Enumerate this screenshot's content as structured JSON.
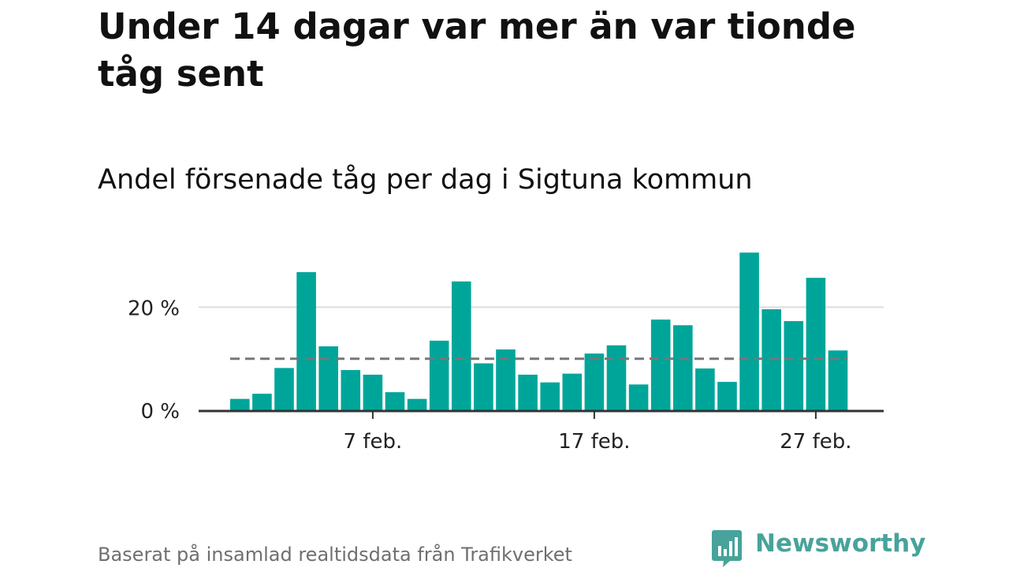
{
  "title": "Under 14 dagar var mer än var tionde tåg sent",
  "subtitle": "Andel försenade tåg per dag i Sigtuna kommun",
  "source": "Baserat på insamlad realtidsdata från Trafikverket",
  "logo": {
    "text": "Newsworthy",
    "icon": "newsworthy-bar-chart-icon",
    "color": "#47a39b"
  },
  "chart_data": {
    "type": "bar",
    "x_unit": "day of February (1 = 1 feb.)",
    "x": [
      1,
      2,
      3,
      4,
      5,
      6,
      7,
      8,
      9,
      10,
      11,
      12,
      13,
      14,
      15,
      16,
      17,
      18,
      19,
      20,
      21,
      22,
      23,
      24,
      25,
      26,
      27,
      28
    ],
    "values": [
      2.2,
      3.2,
      8.2,
      26.8,
      12.4,
      7.8,
      6.9,
      3.5,
      2.2,
      13.5,
      25.0,
      9.1,
      11.8,
      6.9,
      5.4,
      7.1,
      11.0,
      12.6,
      5.0,
      17.6,
      16.5,
      8.1,
      5.5,
      30.6,
      19.6,
      17.3,
      25.7,
      11.6
    ],
    "value_unit": "%",
    "yticks": [
      {
        "value": 0,
        "label": "0 %"
      },
      {
        "value": 20,
        "label": "20 %"
      }
    ],
    "xticks": [
      {
        "day": 7,
        "label": "7 feb."
      },
      {
        "day": 17,
        "label": "17 feb."
      },
      {
        "day": 27,
        "label": "27 feb."
      }
    ],
    "ylim": [
      0,
      32
    ],
    "reference_line": {
      "value": 10,
      "style": "dashed"
    },
    "grid": "horizontal",
    "bar_color": "#00a59a",
    "reference_color": "#777777",
    "grid_color": "#dddddd",
    "axis_color": "#333333"
  }
}
